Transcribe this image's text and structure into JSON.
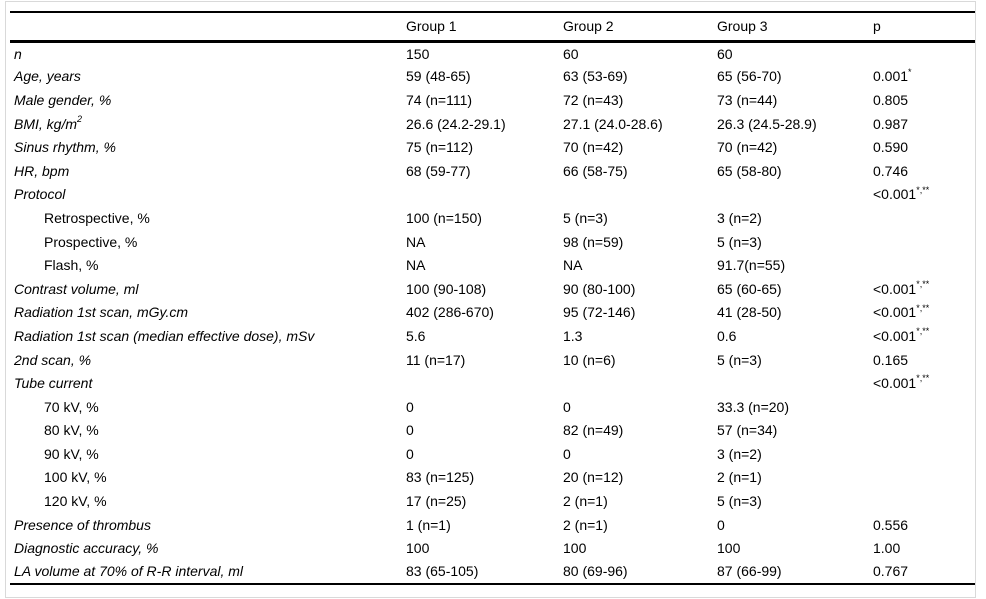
{
  "colors": {
    "text": "#000000",
    "background": "#ffffff",
    "rule": "#000000",
    "frame": "#d9d9d9"
  },
  "table": {
    "columns": [
      "",
      "Group 1",
      "Group 2",
      "Group 3",
      "p"
    ],
    "rows": [
      {
        "label": "n",
        "italic": true,
        "indent": false,
        "g1": "150",
        "g2": "60",
        "g3": "60",
        "p": ""
      },
      {
        "label": "Age, years",
        "italic": true,
        "indent": false,
        "g1": "59 (48-65)",
        "g2": "63 (53-69)",
        "g3": "65 (56-70)",
        "p": "0.001",
        "p_sup": "*"
      },
      {
        "label": "Male gender, %",
        "italic": true,
        "indent": false,
        "g1": "74 (n=111)",
        "g2": "72 (n=43)",
        "g3": "73 (n=44)",
        "p": "0.805"
      },
      {
        "label": "BMI, kg/m",
        "label_sup": "2",
        "italic": true,
        "indent": false,
        "g1": "26.6 (24.2-29.1)",
        "g2": "27.1 (24.0-28.6)",
        "g3": "26.3 (24.5-28.9)",
        "p": "0.987"
      },
      {
        "label": "Sinus rhythm, %",
        "italic": true,
        "indent": false,
        "g1": "75 (n=112)",
        "g2": "70 (n=42)",
        "g3": "70 (n=42)",
        "p": "0.590"
      },
      {
        "label": "HR, bpm",
        "italic": true,
        "indent": false,
        "g1": "68 (59-77)",
        "g2": "66 (58-75)",
        "g3": "65 (58-80)",
        "p": "0.746"
      },
      {
        "label": "Protocol",
        "italic": true,
        "indent": false,
        "g1": "",
        "g2": "",
        "g3": "",
        "p": "<0.001",
        "p_sup": "*,**"
      },
      {
        "label": "Retrospective, %",
        "italic": false,
        "indent": true,
        "g1": "100 (n=150)",
        "g2": "5 (n=3)",
        "g3": "3 (n=2)",
        "p": ""
      },
      {
        "label": "Prospective, %",
        "italic": false,
        "indent": true,
        "g1": "NA",
        "g2": "98 (n=59)",
        "g3": "5 (n=3)",
        "p": ""
      },
      {
        "label": "Flash, %",
        "italic": false,
        "indent": true,
        "g1": "NA",
        "g2": "NA",
        "g3": "91.7(n=55)",
        "p": ""
      },
      {
        "label": "Contrast volume, ml",
        "italic": true,
        "indent": false,
        "g1": "100 (90-108)",
        "g2": "90 (80-100)",
        "g3": "65 (60-65)",
        "p": "<0.001",
        "p_sup": "*,**"
      },
      {
        "label": "Radiation 1st scan, mGy.cm",
        "italic": true,
        "indent": false,
        "g1": "402 (286-670)",
        "g2": "95 (72-146)",
        "g3": "41 (28-50)",
        "p": "<0.001",
        "p_sup": "*,**"
      },
      {
        "label": "Radiation 1st scan (median effective dose), mSv",
        "italic": true,
        "indent": false,
        "g1": "5.6",
        "g2": "1.3",
        "g3": "0.6",
        "p": "<0.001",
        "p_sup": "*,**"
      },
      {
        "label": "2nd scan, %",
        "italic": true,
        "indent": false,
        "g1": "11 (n=17)",
        "g2": "10 (n=6)",
        "g3": "5 (n=3)",
        "p": "0.165"
      },
      {
        "label": "Tube current",
        "italic": true,
        "indent": false,
        "g1": "",
        "g2": "",
        "g3": "",
        "p": "<0.001",
        "p_sup": "*,**"
      },
      {
        "label": "70 kV, %",
        "italic": false,
        "indent": true,
        "g1": "0",
        "g2": "0",
        "g3": "33.3 (n=20)",
        "p": ""
      },
      {
        "label": "80 kV, %",
        "italic": false,
        "indent": true,
        "g1": "0",
        "g2": "82 (n=49)",
        "g3": "57 (n=34)",
        "p": ""
      },
      {
        "label": "90 kV, %",
        "italic": false,
        "indent": true,
        "g1": "0",
        "g2": "0",
        "g3": "3 (n=2)",
        "p": ""
      },
      {
        "label": "100 kV, %",
        "italic": false,
        "indent": true,
        "g1": "83 (n=125)",
        "g2": "20 (n=12)",
        "g3": "2 (n=1)",
        "p": ""
      },
      {
        "label": "120 kV, %",
        "italic": false,
        "indent": true,
        "g1": "17 (n=25)",
        "g2": "2 (n=1)",
        "g3": "5 (n=3)",
        "p": ""
      },
      {
        "label": "Presence of thrombus",
        "italic": true,
        "indent": false,
        "g1": "1 (n=1)",
        "g2": "2 (n=1)",
        "g3": "0",
        "p": "0.556"
      },
      {
        "label": "Diagnostic accuracy, %",
        "italic": true,
        "indent": false,
        "g1": "100",
        "g2": "100",
        "g3": "100",
        "p": "1.00"
      },
      {
        "label": "LA volume at 70% of R-R interval, ml",
        "italic": true,
        "indent": false,
        "g1": "83 (65-105)",
        "g2": "80 (69-96)",
        "g3": "87 (66-99)",
        "p": "0.767"
      }
    ]
  }
}
